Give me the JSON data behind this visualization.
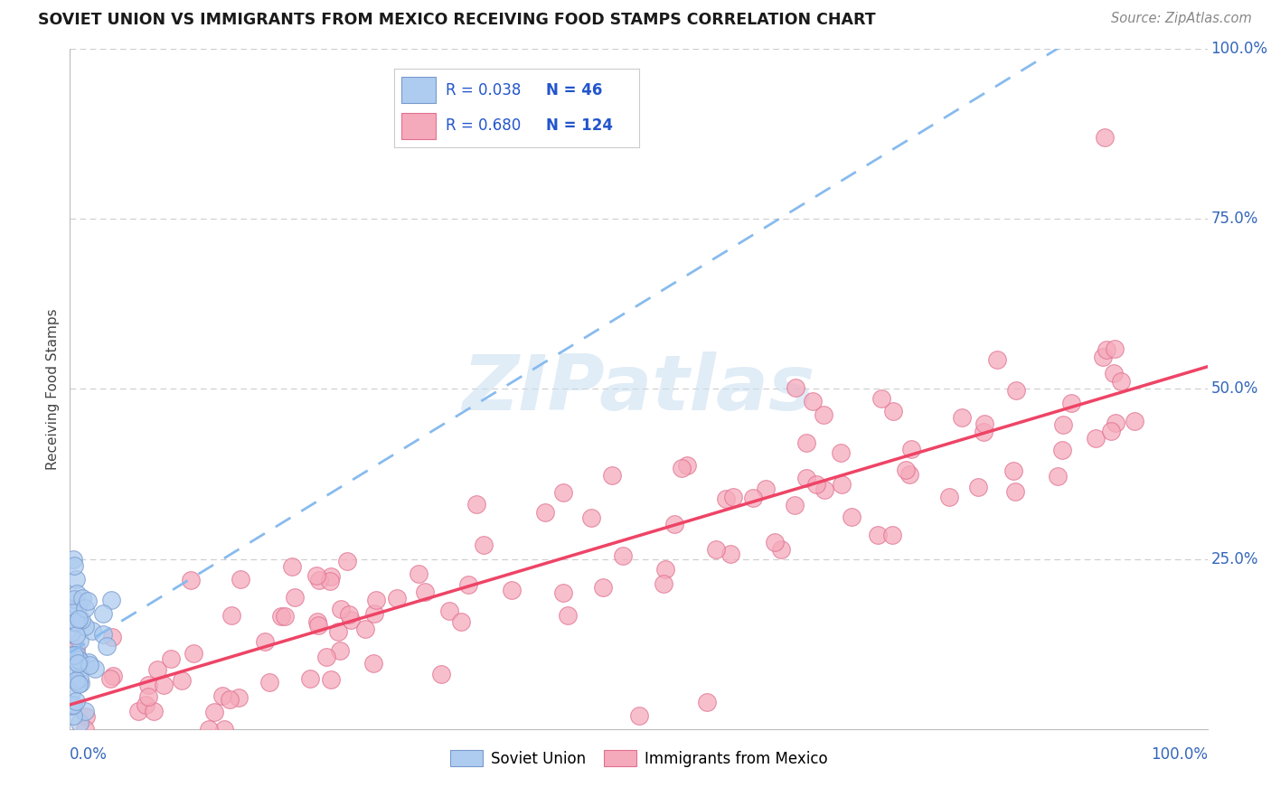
{
  "title": "SOVIET UNION VS IMMIGRANTS FROM MEXICO RECEIVING FOOD STAMPS CORRELATION CHART",
  "source": "Source: ZipAtlas.com",
  "ylabel": "Receiving Food Stamps",
  "r_soviet": "0.038",
  "n_soviet": "46",
  "r_mexico": "0.680",
  "n_mexico": "124",
  "background_color": "#ffffff",
  "grid_color": "#cccccc",
  "soviet_color": "#aeccf0",
  "soviet_edge": "#7799cc",
  "mexico_color": "#f5aabb",
  "mexico_edge": "#e07090",
  "trendline_soviet_color": "#88bbee",
  "trendline_mexico_color": "#ee4466",
  "title_color": "#1a1a1a",
  "axis_label_color": "#3366bb",
  "legend_r_color": "#2255cc",
  "watermark_color": "#c8ddf0",
  "watermark": "ZIPatlas"
}
